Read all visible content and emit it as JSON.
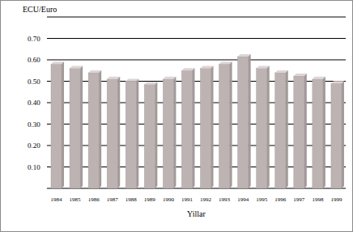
{
  "chart_data": {
    "type": "bar",
    "ylabel": "ECU/Euro",
    "xlabel": "Yillar",
    "categories": [
      "1984",
      "1985",
      "1986",
      "1987",
      "1988",
      "1989",
      "1990",
      "1991",
      "1992",
      "1993",
      "1994",
      "1995",
      "1996",
      "1997",
      "1998",
      "1999"
    ],
    "values": [
      0.58,
      0.56,
      0.54,
      0.51,
      0.5,
      0.485,
      0.51,
      0.55,
      0.56,
      0.58,
      0.615,
      0.56,
      0.54,
      0.525,
      0.51,
      0.49
    ],
    "color": "#bdb3b3",
    "ylim": [
      0,
      0.8
    ],
    "yticks": [
      {
        "value": 0.1,
        "label": "0.10"
      },
      {
        "value": 0.2,
        "label": "0.20"
      },
      {
        "value": 0.3,
        "label": "0.30"
      },
      {
        "value": 0.4,
        "label": "0.40"
      },
      {
        "value": 0.5,
        "label": "0.50"
      },
      {
        "value": 0.6,
        "label": "0.60"
      },
      {
        "value": 0.7,
        "label": "0.70"
      }
    ],
    "grid": true
  }
}
